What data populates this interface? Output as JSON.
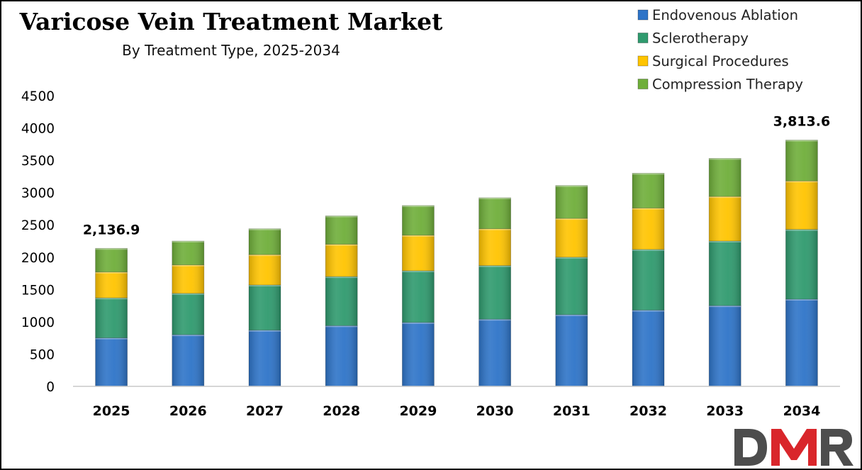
{
  "chart_data": {
    "type": "bar",
    "stacked": true,
    "title": "Varicose Vein Treatment Market",
    "subtitle": "By Treatment Type, 2025-2034",
    "categories": [
      "2025",
      "2026",
      "2027",
      "2028",
      "2029",
      "2030",
      "2031",
      "2032",
      "2033",
      "2034"
    ],
    "series": [
      {
        "name": "Endovenous Ablation",
        "color": "#2e74c8",
        "values": [
          750,
          800,
          870,
          940,
          990,
          1040,
          1110,
          1180,
          1250,
          1350
        ]
      },
      {
        "name": "Sclerotherapy",
        "color": "#2f9a6e",
        "values": [
          620,
          640,
          700,
          760,
          800,
          830,
          890,
          940,
          1000,
          1080
        ]
      },
      {
        "name": "Surgical Procedures",
        "color": "#ffc400",
        "values": [
          400,
          440,
          470,
          500,
          550,
          570,
          600,
          640,
          690,
          750
        ]
      },
      {
        "name": "Compression Therapy",
        "color": "#6fae3a",
        "values": [
          366.9,
          370,
          400,
          440,
          460,
          480,
          510,
          540,
          590,
          633.6
        ]
      }
    ],
    "data_labels": [
      {
        "category": "2025",
        "text": "2,136.9"
      },
      {
        "category": "2034",
        "text": "3,813.6"
      }
    ],
    "ylim": [
      0,
      4500
    ],
    "yticks": [
      0,
      500,
      1000,
      1500,
      2000,
      2500,
      3000,
      3500,
      4000,
      4500
    ],
    "xlabel": "",
    "ylabel": "",
    "grid": false,
    "legend_position": "top-right"
  },
  "branding": {
    "logo_text": "DMR",
    "logo_colors": [
      "#4d4d4d",
      "#d9262b"
    ]
  }
}
